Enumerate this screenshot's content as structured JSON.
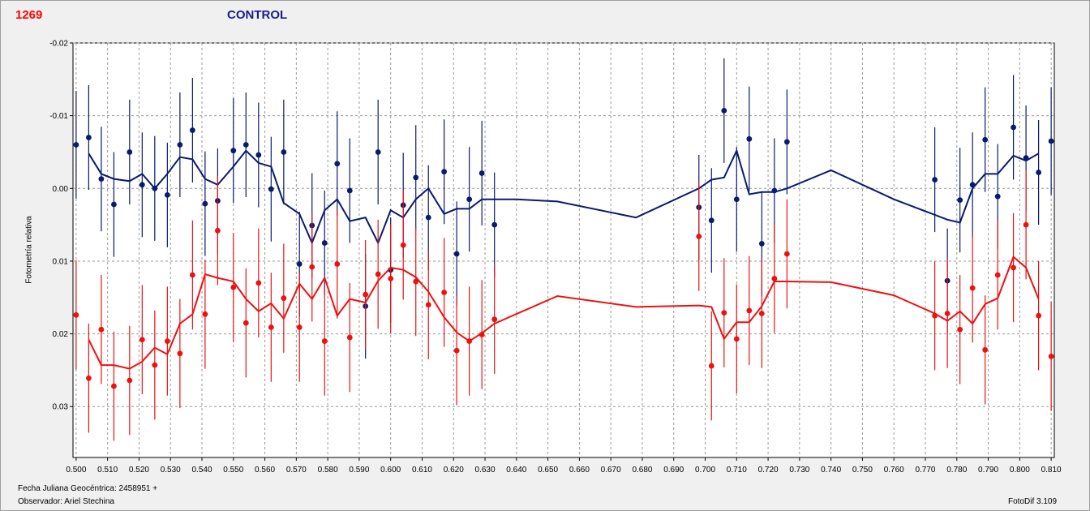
{
  "header": {
    "id": "1269",
    "title": "CONTROL"
  },
  "footer": {
    "jd": "Fecha Juliana Geocéntrica: 2458951 +",
    "observer": "Observador: Ariel Stechina",
    "app": "FotoDif 3.109"
  },
  "chart_data": {
    "type": "scatter",
    "title": "CONTROL",
    "xlabel": "Fecha Juliana Geocéntrica: 2458951 +",
    "ylabel": "Fotometría relativa",
    "xlim": [
      0.499,
      0.811
    ],
    "ylim": [
      -0.02,
      0.037
    ],
    "y_inverted": true,
    "grid": true,
    "x_ticks": [
      0.5,
      0.51,
      0.52,
      0.53,
      0.54,
      0.55,
      0.56,
      0.57,
      0.58,
      0.59,
      0.6,
      0.61,
      0.62,
      0.63,
      0.64,
      0.65,
      0.66,
      0.67,
      0.68,
      0.69,
      0.7,
      0.71,
      0.72,
      0.73,
      0.74,
      0.75,
      0.76,
      0.77,
      0.78,
      0.79,
      0.8,
      0.81
    ],
    "x_tick_labels": [
      "0.500",
      "0.510",
      "0.520",
      "0.530",
      "0.540",
      "0.550",
      "0.560",
      "0.570",
      "0.580",
      "0.590",
      "0.600",
      "0.610",
      "0.620",
      "0.630",
      "0.640",
      "0.650",
      "0.660",
      "0.670",
      "0.680",
      "0.690",
      "0.700",
      "0.710",
      "0.720",
      "0.730",
      "0.740",
      "0.750",
      "0.760",
      "0.770",
      "0.780",
      "0.790",
      "0.800",
      "0.810"
    ],
    "y_ticks": [
      -0.02,
      -0.01,
      0.0,
      0.01,
      0.02,
      0.03
    ],
    "y_tick_labels": [
      "-0.02",
      "-0.01",
      "0.00",
      "0.01",
      "0.02",
      "0.03"
    ],
    "series": [
      {
        "color": "#0a1a6e",
        "x": [
          0.5,
          0.504,
          0.508,
          0.512,
          0.517,
          0.521,
          0.525,
          0.529,
          0.533,
          0.537,
          0.541,
          0.545,
          0.55,
          0.554,
          0.558,
          0.562,
          0.566,
          0.571,
          0.575,
          0.579,
          0.583,
          0.587,
          0.592,
          0.596,
          0.6,
          0.604,
          0.608,
          0.612,
          0.617,
          0.621,
          0.625,
          0.629,
          0.633,
          0.698,
          0.702,
          0.706,
          0.71,
          0.714,
          0.718,
          0.722,
          0.726,
          0.773,
          0.777,
          0.781,
          0.785,
          0.789,
          0.793,
          0.798,
          0.802,
          0.806,
          0.81
        ],
        "y": [
          -0.006,
          -0.007,
          -0.0013,
          0.0022,
          -0.005,
          -0.0005,
          0.0,
          0.0009,
          -0.006,
          -0.008,
          0.0021,
          0.0017,
          -0.0052,
          -0.006,
          -0.0046,
          0.0001,
          -0.005,
          0.0104,
          0.0051,
          0.0075,
          -0.0034,
          0.0003,
          0.0162,
          -0.005,
          0.0112,
          0.0023,
          -0.0015,
          0.004,
          -0.0023,
          0.009,
          0.0015,
          -0.0021,
          0.005,
          0.0026,
          0.0044,
          -0.0107,
          0.0015,
          -0.0068,
          0.0076,
          0.0003,
          -0.0064,
          -0.0012,
          0.0127,
          0.0016,
          -0.0005,
          -0.0067,
          0.0011,
          -0.0084,
          -0.0042,
          -0.0022,
          -0.0065
        ],
        "err": [
          0.0074,
          0.0072,
          0.0072,
          0.0072,
          0.0072,
          0.0072,
          0.0072,
          0.0072,
          0.0072,
          0.0072,
          0.0072,
          0.0072,
          0.0072,
          0.0072,
          0.0072,
          0.0072,
          0.0072,
          0.0072,
          0.0072,
          0.0072,
          0.0072,
          0.0072,
          0.0072,
          0.0072,
          0.0072,
          0.0072,
          0.0072,
          0.0072,
          0.0072,
          0.0072,
          0.0072,
          0.0072,
          0.0072,
          0.0072,
          0.0072,
          0.0072,
          0.0072,
          0.0072,
          0.0072,
          0.0072,
          0.0072,
          0.0072,
          0.0072,
          0.0072,
          0.0072,
          0.0072,
          0.0072,
          0.0072,
          0.0072,
          0.0072,
          0.0074
        ],
        "curve_x": [
          0.504,
          0.508,
          0.512,
          0.517,
          0.521,
          0.525,
          0.529,
          0.533,
          0.537,
          0.541,
          0.545,
          0.55,
          0.554,
          0.558,
          0.562,
          0.566,
          0.571,
          0.575,
          0.579,
          0.583,
          0.587,
          0.592,
          0.596,
          0.6,
          0.604,
          0.608,
          0.612,
          0.617,
          0.621,
          0.625,
          0.629,
          0.64,
          0.653,
          0.678,
          0.698,
          0.702,
          0.706,
          0.71,
          0.714,
          0.718,
          0.722,
          0.726,
          0.74,
          0.76,
          0.777,
          0.781,
          0.785,
          0.789,
          0.793,
          0.798,
          0.802,
          0.806
        ],
        "curve_y": [
          -0.0048,
          -0.002,
          -0.0013,
          -0.001,
          -0.002,
          0.0,
          -0.002,
          -0.0043,
          -0.004,
          -0.0013,
          -0.0005,
          -0.003,
          -0.0052,
          -0.0035,
          -0.003,
          0.002,
          0.0035,
          0.0075,
          0.003,
          0.0015,
          0.0045,
          0.004,
          0.0075,
          0.003,
          0.004,
          0.0015,
          0.0,
          0.0035,
          0.0028,
          0.0028,
          0.0015,
          0.0015,
          0.0018,
          0.004,
          0.0,
          -0.0012,
          -0.0015,
          -0.0052,
          0.0008,
          0.0005,
          0.0005,
          0.0,
          -0.0025,
          0.0015,
          0.0043,
          0.0047,
          0.0,
          -0.002,
          -0.002,
          -0.0045,
          -0.0038,
          -0.0048
        ]
      },
      {
        "color": "#ee1111",
        "x": [
          0.5,
          0.504,
          0.508,
          0.512,
          0.517,
          0.521,
          0.525,
          0.529,
          0.533,
          0.537,
          0.541,
          0.545,
          0.55,
          0.554,
          0.558,
          0.562,
          0.566,
          0.571,
          0.575,
          0.579,
          0.583,
          0.587,
          0.592,
          0.596,
          0.6,
          0.604,
          0.608,
          0.612,
          0.617,
          0.621,
          0.625,
          0.629,
          0.633,
          0.698,
          0.702,
          0.706,
          0.71,
          0.714,
          0.718,
          0.722,
          0.726,
          0.773,
          0.777,
          0.781,
          0.785,
          0.789,
          0.793,
          0.798,
          0.802,
          0.806,
          0.81
        ],
        "y": [
          0.0174,
          0.0261,
          0.0194,
          0.0272,
          0.0264,
          0.0208,
          0.0243,
          0.021,
          0.0227,
          0.0119,
          0.0173,
          0.0058,
          0.0136,
          0.0185,
          0.013,
          0.0191,
          0.0151,
          0.0191,
          0.0108,
          0.021,
          0.0104,
          0.0205,
          0.0146,
          0.0118,
          0.0124,
          0.0078,
          0.0128,
          0.016,
          0.0143,
          0.0223,
          0.021,
          0.0201,
          0.018,
          0.0066,
          0.0244,
          0.0171,
          0.0207,
          0.0168,
          0.0172,
          0.0124,
          0.009,
          0.0175,
          0.0172,
          0.0194,
          0.0137,
          0.0222,
          0.0119,
          0.0109,
          0.005,
          0.0175,
          0.0231
        ],
        "err": [
          0.0075,
          0.0075,
          0.0075,
          0.0075,
          0.0075,
          0.0075,
          0.0075,
          0.0075,
          0.0075,
          0.0075,
          0.0075,
          0.0075,
          0.0075,
          0.0075,
          0.0075,
          0.0075,
          0.0075,
          0.0075,
          0.0075,
          0.0075,
          0.0075,
          0.0075,
          0.0075,
          0.0075,
          0.0075,
          0.0075,
          0.0075,
          0.0075,
          0.0075,
          0.0075,
          0.0075,
          0.0075,
          0.0075,
          0.0075,
          0.0075,
          0.0075,
          0.0075,
          0.0075,
          0.0075,
          0.0075,
          0.0075,
          0.0075,
          0.0075,
          0.0075,
          0.0075,
          0.0075,
          0.0075,
          0.0075,
          0.0075,
          0.0075,
          0.0075
        ],
        "curve_x": [
          0.504,
          0.508,
          0.512,
          0.517,
          0.521,
          0.525,
          0.529,
          0.533,
          0.537,
          0.541,
          0.545,
          0.55,
          0.554,
          0.558,
          0.562,
          0.566,
          0.571,
          0.575,
          0.579,
          0.583,
          0.587,
          0.592,
          0.596,
          0.6,
          0.604,
          0.608,
          0.612,
          0.617,
          0.621,
          0.625,
          0.629,
          0.633,
          0.653,
          0.678,
          0.698,
          0.702,
          0.706,
          0.71,
          0.714,
          0.718,
          0.722,
          0.726,
          0.74,
          0.76,
          0.773,
          0.777,
          0.781,
          0.785,
          0.789,
          0.793,
          0.798,
          0.802,
          0.806
        ],
        "curve_y": [
          0.0208,
          0.0243,
          0.0243,
          0.0248,
          0.0238,
          0.0219,
          0.0228,
          0.0186,
          0.0173,
          0.0118,
          0.0123,
          0.0128,
          0.0152,
          0.0169,
          0.0158,
          0.0179,
          0.0131,
          0.0152,
          0.0123,
          0.0175,
          0.0152,
          0.0157,
          0.0127,
          0.0109,
          0.0112,
          0.0122,
          0.0142,
          0.0177,
          0.0198,
          0.021,
          0.0199,
          0.0186,
          0.0148,
          0.0163,
          0.0161,
          0.0163,
          0.0207,
          0.0184,
          0.0184,
          0.0162,
          0.0128,
          0.0128,
          0.0129,
          0.0147,
          0.0172,
          0.0182,
          0.0169,
          0.0186,
          0.0159,
          0.0151,
          0.0094,
          0.0109,
          0.0152
        ]
      }
    ]
  }
}
